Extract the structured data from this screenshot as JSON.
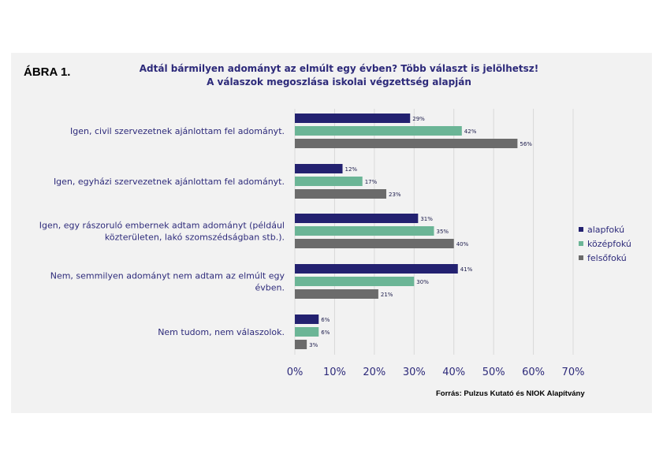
{
  "figure_label": "ÁBRA 1.",
  "source": "Forrás: Pulzus Kutató és NIOK Alapítvány",
  "colors": {
    "alapfokú": "#232170",
    "középfokú": "#6bb596",
    "felsőfokú": "#6b6b6b"
  },
  "chart_data": {
    "type": "bar",
    "orientation": "horizontal",
    "title": "Adtál bármilyen adományt az elmúlt egy évben? Több választ is jelölhetsz!",
    "subtitle": "A válaszok megoszlása iskolai végzettség alapján",
    "categories": [
      [
        "Igen, civil szervezetnek ajánlottam fel adományt."
      ],
      [
        "Igen, egyházi szervezetnek ajánlottam fel adományt."
      ],
      [
        "Igen, egy rászoruló embernek adtam adományt (például",
        "közterületen, lakó szomszédságban stb.)."
      ],
      [
        "Nem, semmilyen adományt nem adtam az elmúlt egy",
        "évben."
      ],
      [
        "Nem tudom, nem válaszolok."
      ]
    ],
    "series": [
      {
        "name": "alapfokú",
        "values": [
          29,
          12,
          31,
          41,
          6
        ]
      },
      {
        "name": "középfokú",
        "values": [
          42,
          17,
          35,
          30,
          6
        ]
      },
      {
        "name": "felsőfokú",
        "values": [
          56,
          23,
          40,
          21,
          3
        ]
      }
    ],
    "xlim": [
      0,
      70
    ],
    "xticks": [
      "0%",
      "10%",
      "20%",
      "30%",
      "40%",
      "50%",
      "60%",
      "70%"
    ],
    "value_suffix": "%",
    "grid": true,
    "legend_position": "right"
  }
}
